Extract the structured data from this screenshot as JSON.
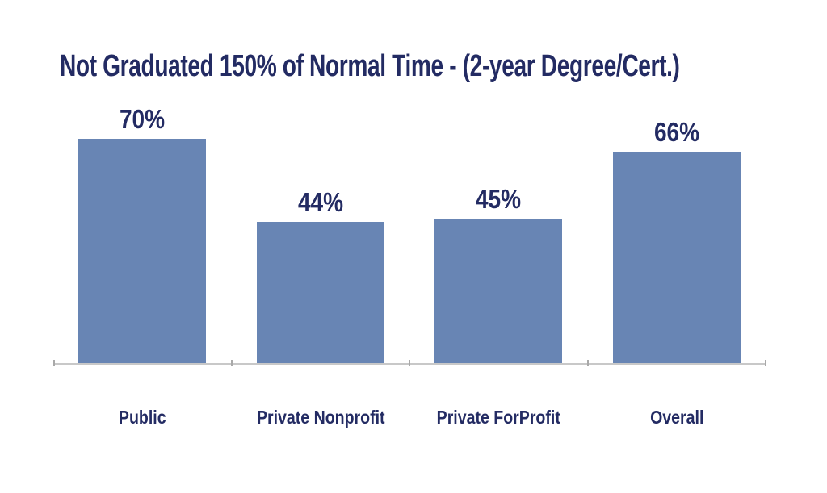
{
  "chart_data": {
    "type": "bar",
    "title": "Not Graduated 150% of Normal Time - (2-year Degree/Cert.)",
    "categories": [
      "Public",
      "Private Nonprofit",
      "Private ForProfit",
      "Overall"
    ],
    "values": [
      70,
      44,
      45,
      66
    ],
    "value_labels": [
      "70%",
      "44%",
      "45%",
      "66%"
    ],
    "xlabel": "",
    "ylabel": "",
    "ylim": [
      0,
      85
    ],
    "grid": false,
    "legend": "none",
    "y_axis_visible": false,
    "data_label_position": "above-bar"
  },
  "style": {
    "background": "#ffffff",
    "bar_color": "#6885b4",
    "text_color": "#232b63",
    "axis_line_color": "#c8c8c8",
    "tick_color": "#a9a9a9"
  }
}
